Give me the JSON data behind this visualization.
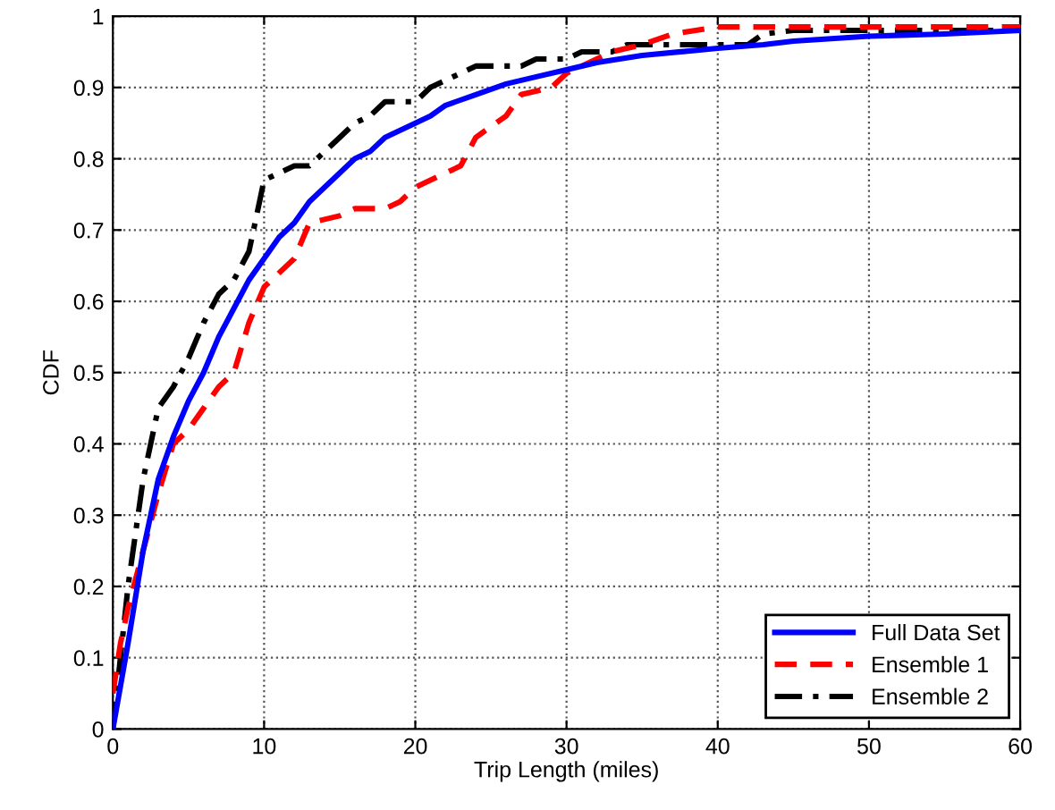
{
  "chart_data": {
    "type": "line",
    "xlabel": "Trip Length (miles)",
    "ylabel": "CDF",
    "xlim": [
      0,
      60
    ],
    "xticks": [
      0,
      10,
      20,
      30,
      40,
      50,
      60
    ],
    "ylim": [
      0,
      1
    ],
    "yticks": [
      0,
      0.1,
      0.2,
      0.3,
      0.4,
      0.5,
      0.6,
      0.7,
      0.8,
      0.9,
      1
    ],
    "grid": true,
    "legend": "bottom right",
    "series": [
      {
        "name": "Full Data Set",
        "color": "#0000ff",
        "line_style": "solid",
        "x": [
          0,
          1,
          2,
          3,
          4,
          5,
          6,
          7,
          8,
          9,
          10,
          11,
          12,
          13,
          14,
          15,
          16,
          17,
          18,
          19,
          20,
          21,
          22,
          24,
          26,
          28,
          30,
          32,
          35,
          40,
          43,
          45,
          50,
          55,
          60
        ],
        "values": [
          0,
          0.12,
          0.25,
          0.35,
          0.41,
          0.46,
          0.5,
          0.55,
          0.59,
          0.63,
          0.66,
          0.69,
          0.71,
          0.74,
          0.76,
          0.78,
          0.8,
          0.81,
          0.83,
          0.84,
          0.85,
          0.86,
          0.875,
          0.89,
          0.905,
          0.915,
          0.925,
          0.935,
          0.945,
          0.955,
          0.96,
          0.965,
          0.972,
          0.975,
          0.98
        ]
      },
      {
        "name": "Ensemble 1",
        "color": "#ff0000",
        "line_style": "dashed",
        "x": [
          0,
          0.5,
          1,
          2,
          3,
          4,
          5,
          6,
          7,
          8,
          9,
          10,
          11,
          12,
          13,
          15,
          16,
          18,
          19,
          20,
          22,
          23,
          24,
          26,
          27,
          29,
          30,
          33,
          35,
          37,
          40,
          50,
          60
        ],
        "values": [
          0.05,
          0.12,
          0.17,
          0.25,
          0.33,
          0.4,
          0.42,
          0.45,
          0.48,
          0.5,
          0.57,
          0.62,
          0.64,
          0.66,
          0.71,
          0.72,
          0.73,
          0.73,
          0.74,
          0.76,
          0.78,
          0.79,
          0.83,
          0.86,
          0.89,
          0.9,
          0.92,
          0.95,
          0.96,
          0.975,
          0.985,
          0.985,
          0.985
        ]
      },
      {
        "name": "Ensemble 2",
        "color": "#000000",
        "line_style": "dashdot",
        "x": [
          0,
          0.5,
          1,
          2,
          3,
          4,
          5,
          6,
          7,
          8,
          9,
          10,
          11,
          12,
          13,
          14,
          15,
          16,
          17,
          18,
          20,
          21,
          22,
          24,
          27,
          28,
          30,
          31,
          33,
          34,
          38,
          42,
          43,
          45,
          60
        ],
        "values": [
          0,
          0.1,
          0.2,
          0.35,
          0.45,
          0.48,
          0.52,
          0.57,
          0.61,
          0.63,
          0.67,
          0.77,
          0.78,
          0.79,
          0.79,
          0.81,
          0.83,
          0.85,
          0.86,
          0.88,
          0.88,
          0.9,
          0.91,
          0.93,
          0.93,
          0.94,
          0.94,
          0.95,
          0.95,
          0.96,
          0.96,
          0.96,
          0.975,
          0.98,
          0.98
        ]
      }
    ]
  }
}
